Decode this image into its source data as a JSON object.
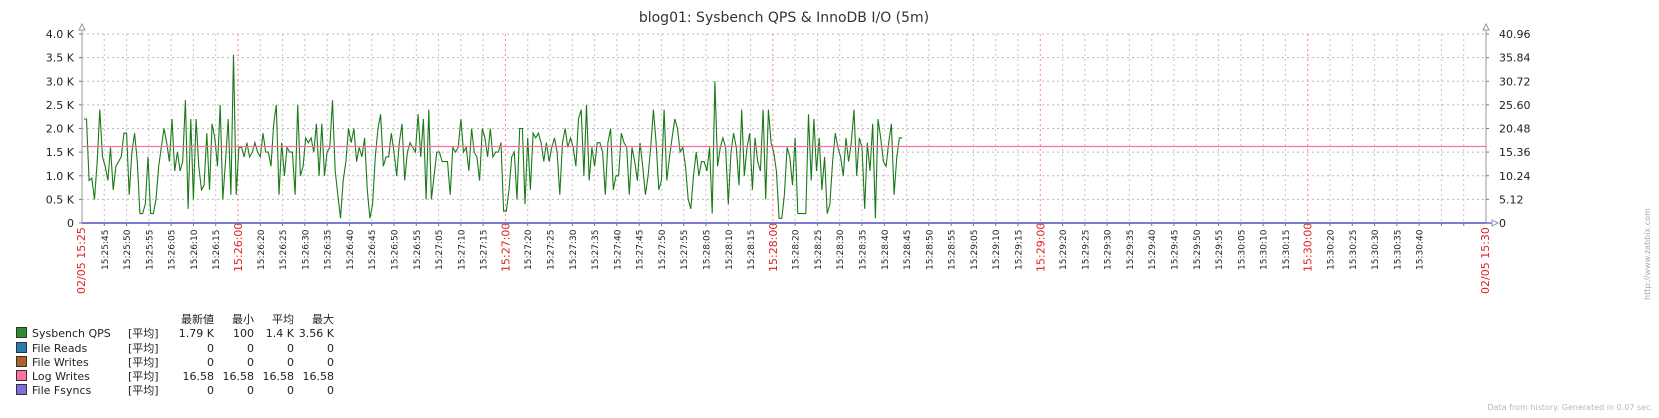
{
  "chart_data": {
    "type": "line",
    "title": "blog01: Sysbench QPS & InnoDB I/O (5m)",
    "y_left_ticks": [
      "0",
      "0.5 K",
      "1.0 K",
      "1.5 K",
      "2.0 K",
      "2.5 K",
      "3.0 K",
      "3.5 K",
      "4.0 K"
    ],
    "y_left_range": [
      0,
      4000
    ],
    "y_right_ticks": [
      "0",
      "5.12",
      "10.24",
      "15.36",
      "20.48",
      "25.60",
      "30.72",
      "35.84",
      "40.96"
    ],
    "y_right_range": [
      0,
      40.96
    ],
    "x_range_seconds": [
      0,
      315
    ],
    "x_start_label": "02/05 15:25",
    "x_end_label": "02/05 15:30",
    "x_major_labels": [
      {
        "t": 35,
        "label": "15:26:00"
      },
      {
        "t": 95,
        "label": "15:27:00"
      },
      {
        "t": 155,
        "label": "15:28:00"
      },
      {
        "t": 215,
        "label": "15:29:00"
      },
      {
        "t": 275,
        "label": "15:30:00"
      }
    ],
    "x_minor_labels": [
      "15:25:45",
      "15:25:50",
      "15:25:55",
      "15:26:05",
      "15:26:10",
      "15:26:15",
      "15:26:20",
      "15:26:25",
      "15:26:30",
      "15:26:35",
      "15:26:40",
      "15:26:45",
      "15:26:50",
      "15:26:55",
      "15:27:05",
      "15:27:10",
      "15:27:15",
      "15:27:20",
      "15:27:25",
      "15:27:30",
      "15:27:35",
      "15:27:40",
      "15:27:45",
      "15:27:50",
      "15:27:55",
      "15:28:05",
      "15:28:10",
      "15:28:15",
      "15:28:20",
      "15:28:25",
      "15:28:30",
      "15:28:35",
      "15:28:40",
      "15:28:45",
      "15:28:50",
      "15:28:55",
      "15:29:05",
      "15:29:10",
      "15:29:15",
      "15:29:20",
      "15:29:25",
      "15:29:30",
      "15:29:35",
      "15:29:40",
      "15:29:45",
      "15:29:50",
      "15:29:55",
      "15:30:05",
      "15:30:10",
      "15:30:15",
      "15:30:20",
      "15:30:25",
      "15:30:30",
      "15:30:35",
      "15:30:40"
    ],
    "grid": true,
    "series": [
      {
        "name": "Sysbench QPS",
        "color": "#1a7a1a",
        "axis": "left",
        "t_step": 0.6,
        "values": [
          2200,
          2200,
          900,
          950,
          500,
          1300,
          2400,
          1400,
          1200,
          900,
          1600,
          700,
          1200,
          1300,
          1400,
          1900,
          1900,
          600,
          1500,
          1900,
          1300,
          200,
          200,
          400,
          1400,
          200,
          200,
          500,
          1200,
          1600,
          2000,
          1700,
          1300,
          2200,
          1100,
          1500,
          1100,
          1300,
          2600,
          300,
          2200,
          500,
          2200,
          1200,
          700,
          800,
          1900,
          700,
          2100,
          1800,
          1200,
          2500,
          500,
          1300,
          2200,
          600,
          3560,
          600,
          1600,
          1600,
          1400,
          1700,
          1400,
          1500,
          1700,
          1500,
          1400,
          1900,
          1500,
          1500,
          1200,
          2100,
          2500,
          600,
          1700,
          1000,
          1600,
          1500,
          1500,
          600,
          2500,
          1000,
          1200,
          1800,
          1700,
          1800,
          1500,
          2100,
          1000,
          2100,
          1000,
          1500,
          1600,
          2600,
          1100,
          600,
          100,
          900,
          1300,
          2000,
          1700,
          2000,
          1300,
          1600,
          1400,
          1800,
          700,
          100,
          400,
          1400,
          2000,
          2300,
          1200,
          1400,
          1400,
          1900,
          1500,
          1000,
          1700,
          2100,
          900,
          1500,
          1700,
          1600,
          1500,
          2300,
          1400,
          2200,
          500,
          2400,
          500,
          1000,
          1500,
          1500,
          1300,
          1300,
          1300,
          600,
          1600,
          1500,
          1600,
          2200,
          1500,
          1600,
          1100,
          2000,
          1500,
          1400,
          900,
          2000,
          1800,
          1400,
          2000,
          1400,
          1500,
          1500,
          1700,
          250,
          250,
          700,
          1400,
          1500,
          500,
          2000,
          2000,
          400,
          1800,
          700,
          1900,
          1800,
          1900,
          1700,
          1300,
          1700,
          1300,
          1600,
          1800,
          1500,
          600,
          1700,
          2000,
          1600,
          1800,
          1600,
          1200,
          2200,
          2400,
          1000,
          2500,
          900,
          1600,
          1200,
          1700,
          1700,
          1500,
          600,
          1700,
          2000,
          700,
          1000,
          1000,
          1900,
          1700,
          1600,
          600,
          1600,
          1300,
          900,
          1700,
          1200,
          600,
          1000,
          1600,
          2400,
          1700,
          700,
          900,
          2400,
          900,
          1400,
          1800,
          2200,
          2000,
          1500,
          1600,
          1200,
          500,
          300,
          1000,
          1500,
          1000,
          1300,
          1300,
          1100,
          1600,
          200,
          3000,
          1200,
          1600,
          1800,
          1600,
          400,
          1500,
          1900,
          1600,
          800,
          2400,
          1000,
          1600,
          1900,
          700,
          1800,
          1300,
          1100,
          2400,
          500,
          2400,
          1700,
          1500,
          1100,
          100,
          100,
          600,
          1600,
          1400,
          800,
          1800,
          200,
          200,
          200,
          200,
          2300,
          900,
          2200,
          1100,
          1800,
          700,
          1400,
          200,
          400,
          1300,
          1900,
          1600,
          1400,
          1000,
          1800,
          1300,
          1700,
          2400,
          1000,
          1800,
          1600,
          300,
          1700,
          1100,
          2100,
          100,
          2200,
          1800,
          1300,
          1200,
          1700,
          2100,
          600,
          1400,
          1800,
          1800
        ]
      },
      {
        "name": "File Reads",
        "color": "#2a7ab0",
        "axis": "right",
        "constant": 0
      },
      {
        "name": "File Writes",
        "color": "#b0602a",
        "axis": "right",
        "constant": 0
      },
      {
        "name": "Log Writes",
        "color": "#ff6fa0",
        "axis": "right",
        "constant": 16.58
      },
      {
        "name": "File Fsyncs",
        "color": "#7b6fe0",
        "axis": "right",
        "constant": 0
      }
    ]
  },
  "legend": {
    "headers": {
      "last": "最新値",
      "min": "最小",
      "avg": "平均",
      "max": "最大"
    },
    "rows": [
      {
        "name": "Sysbench QPS",
        "color": "#2e8b2e",
        "agg": "[平均]",
        "last": "1.79 K",
        "min": "100",
        "avg": "1.4 K",
        "max": "3.56 K"
      },
      {
        "name": "File Reads",
        "color": "#2a7ab0",
        "agg": "[平均]",
        "last": "0",
        "min": "0",
        "avg": "0",
        "max": "0"
      },
      {
        "name": "File Writes",
        "color": "#b0602a",
        "agg": "[平均]",
        "last": "0",
        "min": "0",
        "avg": "0",
        "max": "0"
      },
      {
        "name": "Log Writes",
        "color": "#ff6fa0",
        "agg": "[平均]",
        "last": "16.58",
        "min": "16.58",
        "avg": "16.58",
        "max": "16.58"
      },
      {
        "name": "File Fsyncs",
        "color": "#7b6fe0",
        "agg": "[平均]",
        "last": "0",
        "min": "0",
        "avg": "0",
        "max": "0"
      }
    ]
  },
  "footer": "Data from history. Generated in 0.07 sec.",
  "side_url": "http://www.zabbix.com"
}
